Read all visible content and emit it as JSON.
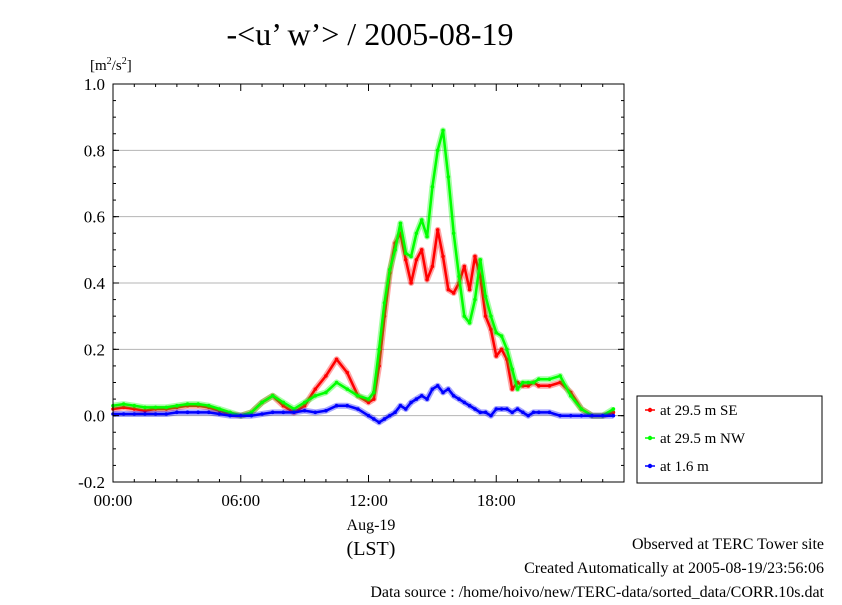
{
  "chart_data": {
    "type": "line",
    "title": "-<u’ w’> / 2005-08-19",
    "ylabel_unit": "[m2/s2]",
    "ylim": [
      -0.2,
      1.0
    ],
    "yticks": [
      -0.2,
      0.0,
      0.2,
      0.4,
      0.6,
      0.8,
      1.0
    ],
    "ytick_labels": [
      "-0.2",
      "0.0",
      "0.2",
      "0.4",
      "0.6",
      "0.8",
      "1.0"
    ],
    "xlim": [
      0,
      24
    ],
    "xticks": [
      0,
      6,
      12,
      18
    ],
    "xtick_labels": [
      "00:00",
      "06:00",
      "12:00",
      "18:00"
    ],
    "x_date_label": "Aug-19",
    "x_timezone_label": "(LST)",
    "grid": true,
    "legend_placement": "lower-right outside plot",
    "series": [
      {
        "name": "at 29.5 m SE",
        "color": "#ff0000",
        "x": [
          0,
          0.5,
          1,
          1.5,
          2,
          2.5,
          3,
          3.5,
          4,
          4.5,
          5,
          5.5,
          6,
          6.5,
          7,
          7.5,
          8,
          8.5,
          9,
          9.5,
          10,
          10.5,
          11,
          11.5,
          12,
          12.25,
          12.5,
          12.75,
          13,
          13.25,
          13.5,
          13.75,
          14,
          14.25,
          14.5,
          14.75,
          15,
          15.25,
          15.5,
          15.75,
          16,
          16.25,
          16.5,
          16.75,
          17,
          17.25,
          17.5,
          17.75,
          18,
          18.25,
          18.5,
          18.75,
          19,
          19.25,
          19.5,
          19.75,
          20,
          20.5,
          21,
          21.5,
          22,
          22.5,
          23,
          23.5,
          23.5
        ],
        "y": [
          0.02,
          0.025,
          0.02,
          0.015,
          0.02,
          0.02,
          0.025,
          0.03,
          0.03,
          0.025,
          0.015,
          0.005,
          0.0,
          0.01,
          0.04,
          0.06,
          0.03,
          0.01,
          0.03,
          0.08,
          0.12,
          0.17,
          0.13,
          0.06,
          0.04,
          0.05,
          0.15,
          0.3,
          0.43,
          0.52,
          0.55,
          0.47,
          0.4,
          0.47,
          0.5,
          0.41,
          0.45,
          0.56,
          0.48,
          0.38,
          0.37,
          0.4,
          0.45,
          0.38,
          0.48,
          0.42,
          0.3,
          0.26,
          0.18,
          0.2,
          0.17,
          0.08,
          0.1,
          0.09,
          0.09,
          0.1,
          0.09,
          0.09,
          0.1,
          0.07,
          0.02,
          0.0,
          0.0,
          0.01,
          0.01
        ]
      },
      {
        "name": "at 29.5 m NW",
        "color": "#00ff00",
        "x": [
          0,
          0.5,
          1,
          1.5,
          2,
          2.5,
          3,
          3.5,
          4,
          4.5,
          5,
          5.5,
          6,
          6.5,
          7,
          7.5,
          8,
          8.5,
          9,
          9.5,
          10,
          10.5,
          11,
          11.5,
          12,
          12.25,
          12.5,
          12.75,
          13,
          13.25,
          13.5,
          13.75,
          14,
          14.25,
          14.5,
          14.75,
          15,
          15.25,
          15.5,
          15.75,
          16,
          16.25,
          16.5,
          16.75,
          17,
          17.25,
          17.5,
          17.75,
          18,
          18.25,
          18.5,
          18.75,
          19,
          19.25,
          19.5,
          19.75,
          20,
          20.5,
          21,
          21.5,
          22,
          22.5,
          23,
          23.5,
          23.5
        ],
        "y": [
          0.03,
          0.035,
          0.03,
          0.025,
          0.025,
          0.025,
          0.03,
          0.035,
          0.035,
          0.03,
          0.02,
          0.01,
          0.0,
          0.01,
          0.04,
          0.06,
          0.04,
          0.02,
          0.04,
          0.06,
          0.07,
          0.1,
          0.08,
          0.06,
          0.05,
          0.07,
          0.2,
          0.34,
          0.44,
          0.5,
          0.58,
          0.49,
          0.48,
          0.55,
          0.59,
          0.54,
          0.69,
          0.8,
          0.86,
          0.72,
          0.55,
          0.42,
          0.3,
          0.28,
          0.35,
          0.47,
          0.36,
          0.3,
          0.25,
          0.24,
          0.2,
          0.14,
          0.08,
          0.1,
          0.1,
          0.1,
          0.11,
          0.11,
          0.12,
          0.06,
          0.02,
          0.0,
          0.0,
          0.02,
          0.02
        ]
      },
      {
        "name": "at 1.6 m",
        "color": "#0000ff",
        "x": [
          0,
          0.5,
          1,
          1.5,
          2,
          2.5,
          3,
          3.5,
          4,
          4.5,
          5,
          5.5,
          6,
          6.5,
          7,
          7.5,
          8,
          8.5,
          9,
          9.5,
          10,
          10.5,
          11,
          11.5,
          12,
          12.25,
          12.5,
          12.75,
          13,
          13.25,
          13.5,
          13.75,
          14,
          14.25,
          14.5,
          14.75,
          15,
          15.25,
          15.5,
          15.75,
          16,
          16.25,
          16.5,
          16.75,
          17,
          17.25,
          17.5,
          17.75,
          18,
          18.25,
          18.5,
          18.75,
          19,
          19.25,
          19.5,
          19.75,
          20,
          20.5,
          21,
          21.5,
          22,
          22.5,
          23,
          23.5,
          23.5
        ],
        "y": [
          0.005,
          0.005,
          0.005,
          0.005,
          0.005,
          0.005,
          0.01,
          0.01,
          0.01,
          0.01,
          0.005,
          0.0,
          0.0,
          0.0,
          0.005,
          0.01,
          0.01,
          0.01,
          0.015,
          0.01,
          0.015,
          0.03,
          0.03,
          0.02,
          0.0,
          -0.01,
          -0.02,
          -0.01,
          0.0,
          0.01,
          0.03,
          0.02,
          0.04,
          0.05,
          0.06,
          0.05,
          0.08,
          0.09,
          0.07,
          0.08,
          0.06,
          0.05,
          0.04,
          0.03,
          0.02,
          0.01,
          0.01,
          0.0,
          0.02,
          0.02,
          0.02,
          0.01,
          0.02,
          0.01,
          0.0,
          0.01,
          0.01,
          0.01,
          0.0,
          0.0,
          0.0,
          0.0,
          0.0,
          0.0,
          0.0
        ]
      }
    ]
  },
  "footer": {
    "line1": "Observed at TERC Tower site",
    "line2": "Created Automatically at 2005-08-19/23:56:06",
    "line3": "Data source : /home/hoivo/new/TERC-data/sorted_data/CORR.10s.dat"
  }
}
